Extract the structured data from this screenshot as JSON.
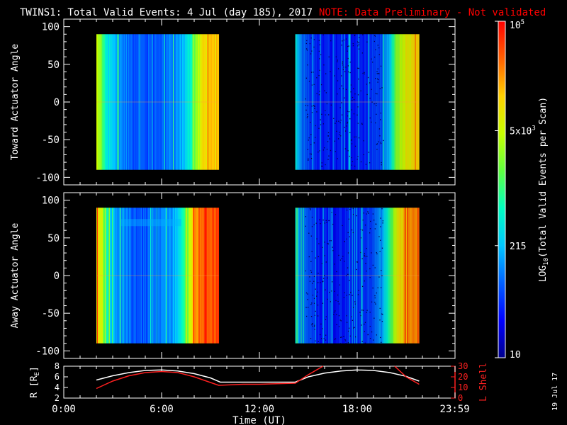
{
  "header": {
    "title": "TWINS1: Total Valid Events:  4 Jul (day 185), 2017",
    "note": "NOTE: Data Preliminary - Not validated"
  },
  "colors": {
    "background": "#000000",
    "axes": "#ffffff",
    "note": "#ff0000",
    "r_line": "#ffffff",
    "l_shell_line": "#ff2020",
    "colormap": [
      "#00008c",
      "#0000ff",
      "#0060ff",
      "#00c8ff",
      "#00ffc0",
      "#60ff40",
      "#c8ff00",
      "#ffd000",
      "#ff6000",
      "#ff0000"
    ]
  },
  "colorbar": {
    "label": "LOG10(Total Valid Events per Scan)",
    "label_main": "LOG",
    "label_sub": "10",
    "label_rest": "(Total Valid  Events per Scan)",
    "ticks": [
      {
        "value": 10,
        "text": "10"
      },
      {
        "value": 215,
        "text": "215"
      },
      {
        "value": 5000,
        "text": "5x10",
        "sup": "3"
      },
      {
        "value": 100000,
        "text": "10",
        "sup": "5"
      }
    ],
    "range": [
      10,
      100000
    ],
    "scale": "log"
  },
  "date_stamp": "19 Jul 17",
  "chart_data": [
    {
      "type": "heatmap",
      "name": "toward",
      "ylabel": "Toward Actuator Angle",
      "ylim": [
        -110,
        110
      ],
      "y_ticks": [
        -100,
        -50,
        0,
        50,
        100
      ],
      "data_y_range": [
        -90,
        90
      ],
      "xlim": [
        0,
        24
      ],
      "data_blocks": [
        {
          "start_hr": 2.0,
          "end_hr": 9.5,
          "scan_profile": [
            {
              "x": 2.0,
              "log": 3.7
            },
            {
              "x": 2.3,
              "log": 3.3
            },
            {
              "x": 2.6,
              "log": 2.6
            },
            {
              "x": 3.2,
              "log": 2.2
            },
            {
              "x": 4.0,
              "log": 1.9
            },
            {
              "x": 5.0,
              "log": 1.8
            },
            {
              "x": 6.0,
              "log": 1.9
            },
            {
              "x": 7.0,
              "log": 2.1
            },
            {
              "x": 7.6,
              "log": 2.5
            },
            {
              "x": 8.0,
              "log": 3.2
            },
            {
              "x": 8.5,
              "log": 4.0
            },
            {
              "x": 9.5,
              "log": 4.1
            }
          ]
        },
        {
          "start_hr": 14.2,
          "end_hr": 21.8,
          "scan_profile": [
            {
              "x": 14.2,
              "log": 2.6
            },
            {
              "x": 14.6,
              "log": 2.0
            },
            {
              "x": 15.5,
              "log": 1.6
            },
            {
              "x": 17.0,
              "log": 1.5
            },
            {
              "x": 18.5,
              "log": 1.6
            },
            {
              "x": 19.5,
              "log": 1.8
            },
            {
              "x": 20.0,
              "log": 2.3
            },
            {
              "x": 20.4,
              "log": 3.4
            },
            {
              "x": 21.0,
              "log": 3.8
            },
            {
              "x": 21.8,
              "log": 4.0
            }
          ]
        }
      ]
    },
    {
      "type": "heatmap",
      "name": "away",
      "ylabel": "Away Actuator Angle",
      "ylim": [
        -110,
        110
      ],
      "y_ticks": [
        -100,
        -50,
        0,
        50,
        100
      ],
      "data_y_range": [
        -90,
        90
      ],
      "xlim": [
        0,
        24
      ],
      "data_blocks": [
        {
          "start_hr": 2.0,
          "end_hr": 9.5,
          "scan_profile": [
            {
              "x": 2.0,
              "log": 4.0
            },
            {
              "x": 2.4,
              "log": 3.6
            },
            {
              "x": 2.7,
              "log": 2.6
            },
            {
              "x": 3.2,
              "log": 2.2
            },
            {
              "x": 4.0,
              "log": 1.9
            },
            {
              "x": 5.0,
              "log": 1.8
            },
            {
              "x": 6.0,
              "log": 2.0
            },
            {
              "x": 7.0,
              "log": 2.3
            },
            {
              "x": 7.5,
              "log": 3.2
            },
            {
              "x": 8.0,
              "log": 4.3
            },
            {
              "x": 8.5,
              "log": 4.6
            },
            {
              "x": 9.5,
              "log": 4.7
            }
          ]
        },
        {
          "start_hr": 14.2,
          "end_hr": 21.8,
          "scan_profile": [
            {
              "x": 14.2,
              "log": 2.6
            },
            {
              "x": 14.6,
              "log": 2.0
            },
            {
              "x": 15.5,
              "log": 1.6
            },
            {
              "x": 17.0,
              "log": 1.5
            },
            {
              "x": 18.5,
              "log": 1.7
            },
            {
              "x": 19.5,
              "log": 2.1
            },
            {
              "x": 20.0,
              "log": 3.0
            },
            {
              "x": 20.5,
              "log": 3.9
            },
            {
              "x": 21.0,
              "log": 4.3
            },
            {
              "x": 21.8,
              "log": 4.5
            }
          ]
        }
      ]
    },
    {
      "type": "line",
      "name": "orbit",
      "xlabel": "Time (UT)",
      "x_ticks": [
        {
          "value": 0,
          "text": "0:00"
        },
        {
          "value": 6,
          "text": "6:00"
        },
        {
          "value": 12,
          "text": "12:00"
        },
        {
          "value": 18,
          "text": "18:00"
        },
        {
          "value": 23.983,
          "text": "23:59"
        }
      ],
      "xlim": [
        0,
        24
      ],
      "y_left": {
        "label": "R [RE]",
        "label_main": "R [R",
        "label_sub": "E",
        "label_end": "]",
        "ylim": [
          2,
          8
        ],
        "ticks": [
          2,
          4,
          6,
          8
        ]
      },
      "y_right": {
        "label": "L Shell",
        "ylim": [
          0,
          30
        ],
        "ticks": [
          0,
          10,
          20,
          30
        ]
      },
      "series": [
        {
          "axis": "left",
          "points": [
            {
              "x": 2.0,
              "y": 5.4
            },
            {
              "x": 3.0,
              "y": 6.2
            },
            {
              "x": 4.0,
              "y": 6.8
            },
            {
              "x": 5.0,
              "y": 7.2
            },
            {
              "x": 6.0,
              "y": 7.3
            },
            {
              "x": 7.0,
              "y": 7.1
            },
            {
              "x": 8.0,
              "y": 6.6
            },
            {
              "x": 9.0,
              "y": 5.8
            },
            {
              "x": 9.6,
              "y": 5.0
            },
            {
              "x": 12.0,
              "y": 5.0
            },
            {
              "x": 14.2,
              "y": 5.0
            },
            {
              "x": 15.0,
              "y": 6.0
            },
            {
              "x": 16.0,
              "y": 6.7
            },
            {
              "x": 17.0,
              "y": 7.1
            },
            {
              "x": 18.0,
              "y": 7.3
            },
            {
              "x": 19.0,
              "y": 7.2
            },
            {
              "x": 20.0,
              "y": 6.8
            },
            {
              "x": 21.0,
              "y": 6.1
            },
            {
              "x": 21.8,
              "y": 5.2
            }
          ]
        },
        {
          "axis": "right",
          "points": [
            {
              "x": 2.0,
              "y": 9
            },
            {
              "x": 3.0,
              "y": 16
            },
            {
              "x": 4.0,
              "y": 21
            },
            {
              "x": 5.0,
              "y": 24
            },
            {
              "x": 6.0,
              "y": 25
            },
            {
              "x": 7.0,
              "y": 24
            },
            {
              "x": 8.0,
              "y": 20
            },
            {
              "x": 9.5,
              "y": 12
            },
            {
              "x": 11.0,
              "y": 13
            },
            {
              "x": 12.0,
              "y": 13
            },
            {
              "x": 14.2,
              "y": 14
            },
            {
              "x": 15.0,
              "y": 22
            },
            {
              "x": 15.9,
              "y": 30
            }
          ]
        },
        {
          "axis": "right",
          "points": [
            {
              "x": 20.3,
              "y": 30
            },
            {
              "x": 21.0,
              "y": 20
            },
            {
              "x": 21.8,
              "y": 13
            }
          ]
        }
      ]
    }
  ]
}
